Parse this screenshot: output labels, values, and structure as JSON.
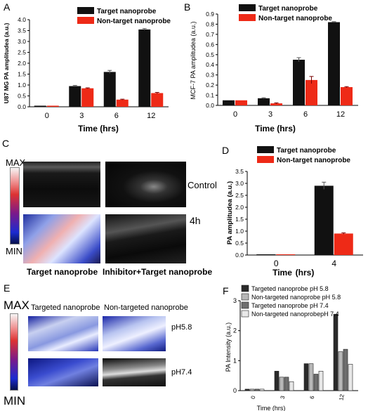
{
  "panels": {
    "a": "A",
    "b": "B",
    "c": "C",
    "d": "D",
    "e": "E",
    "f": "F"
  },
  "colors": {
    "target": "#111111",
    "nontarget": "#ee2a17"
  },
  "panel_c": {
    "scale_max": "MAX",
    "scale_min": "MIN",
    "control": "Control",
    "time": "4h",
    "caption_left": "Target nanoprobe",
    "caption_right": "Inhibitor+Target nanoprobe"
  },
  "panel_e": {
    "scale_max": "MAX",
    "scale_min": "MIN",
    "col_left": "Targeted nanoprobe",
    "col_right": "Non-targeted nanoprobe",
    "row_top": "pH5.8",
    "row_bottom": "pH7.4"
  },
  "chart_data": [
    {
      "id": "A",
      "type": "bar",
      "categories": [
        "0",
        "3",
        "6",
        "12"
      ],
      "series": [
        {
          "name": "Target nanoprobe",
          "values": [
            0.05,
            0.95,
            1.6,
            3.55
          ],
          "err": [
            0,
            0.03,
            0.07,
            0.04
          ]
        },
        {
          "name": "Non-target nanoprobe",
          "values": [
            0.05,
            0.85,
            0.33,
            0.63
          ],
          "err": [
            0,
            0.02,
            0.02,
            0.03
          ]
        }
      ],
      "xlabel": "Time (hrs)",
      "ylabel": "U87 MG PA amplitudea (a.u.)",
      "ylim": [
        0,
        4.0
      ],
      "yticks": [
        "0.0",
        "0.5",
        "1.0",
        "1.5",
        "2.0",
        "2.5",
        "3.0",
        "3.5",
        "4.0"
      ]
    },
    {
      "id": "B",
      "type": "bar",
      "categories": [
        "0",
        "3",
        "6",
        "12"
      ],
      "series": [
        {
          "name": "Target nanoprobe",
          "values": [
            0.05,
            0.07,
            0.45,
            0.82
          ],
          "err": [
            0,
            0.005,
            0.02,
            0.005
          ]
        },
        {
          "name": "Non-target nanoprobe",
          "values": [
            0.05,
            0.02,
            0.25,
            0.18
          ],
          "err": [
            0,
            0.005,
            0.035,
            0.005
          ]
        }
      ],
      "xlabel": "Time   (hrs)",
      "ylabel_prefix": "MCF-7",
      "ylabel": "PA amplitudea (a.u.)",
      "ylim": [
        0,
        0.9
      ],
      "yticks": [
        "0.0",
        "0.1",
        "0.2",
        "0.3",
        "0.4",
        "0.5",
        "0.6",
        "0.7",
        "0.8",
        "0.9"
      ]
    },
    {
      "id": "D",
      "type": "bar",
      "categories": [
        "0",
        "4"
      ],
      "series": [
        {
          "name": "Target nanoprobe",
          "values": [
            0.03,
            2.9
          ],
          "err": [
            0,
            0.15
          ]
        },
        {
          "name": "Non-target nanoprobe",
          "values": [
            0.03,
            0.9
          ],
          "err": [
            0,
            0.03
          ]
        }
      ],
      "xlabel": "Time",
      "xlabel2": "(hrs)",
      "ylabel": "PA amplitudea (a.u.)",
      "ylim": [
        0,
        3.5
      ],
      "yticks": [
        "0.0",
        "0.5",
        "1.0",
        "1.5",
        "2.0",
        "2.5",
        "3.0",
        "3.5"
      ]
    },
    {
      "id": "F",
      "type": "bar",
      "categories": [
        "0",
        "3",
        "6",
        "12"
      ],
      "series": [
        {
          "name": "Targeted nanoprobe pH 5.8",
          "values": [
            0.05,
            0.65,
            0.9,
            2.55
          ]
        },
        {
          "name": "Non-targeted nanoprobe pH 5.8",
          "values": [
            0.05,
            0.45,
            0.9,
            1.3
          ]
        },
        {
          "name": "Targeted nanoprobe pH 7.4",
          "values": [
            0.05,
            0.45,
            0.55,
            1.38
          ]
        },
        {
          "name": "Non-targeted nanoprobepH 7.4",
          "values": [
            0.05,
            0.3,
            0.65,
            0.88
          ]
        }
      ],
      "xlabel": "Time (hrs)",
      "ylabel": "PA Intensity (a.u.)",
      "ylim": [
        0,
        3
      ],
      "yticks": [
        "0",
        "1",
        "2",
        "3"
      ]
    }
  ]
}
